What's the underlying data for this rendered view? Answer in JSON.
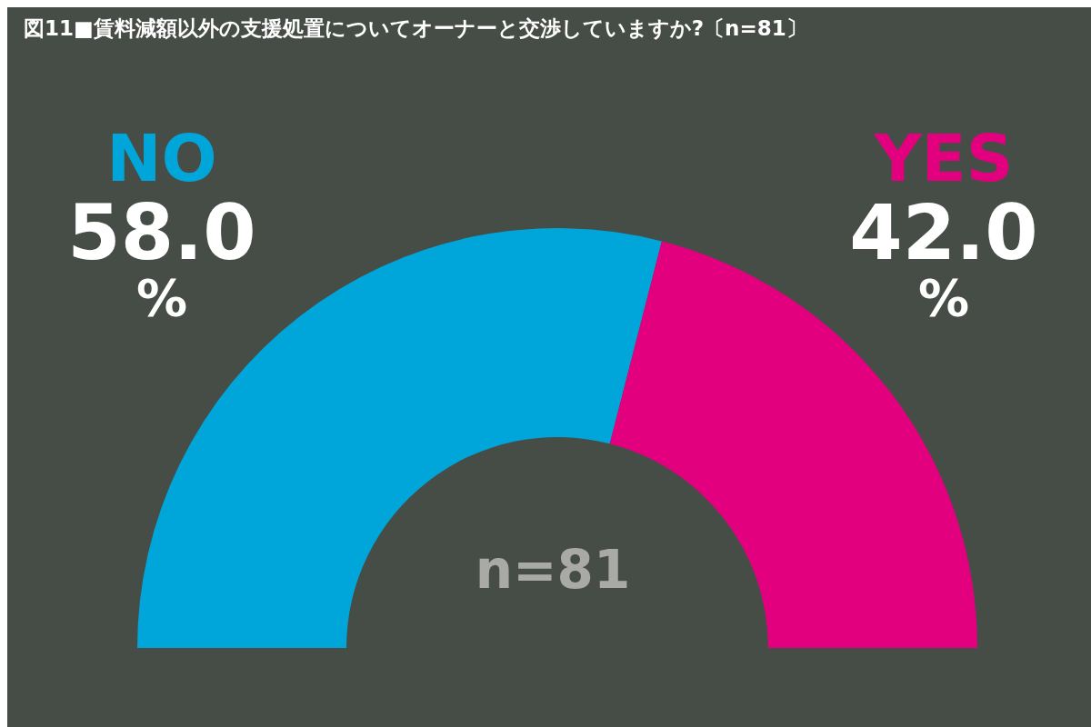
{
  "chart_data": {
    "type": "donut",
    "title": "図11■賃料減額以外の支援処置についてオーナーと交渉していますか?〔n=81〕",
    "categories": [
      "NO",
      "YES"
    ],
    "values": [
      58.0,
      42.0
    ],
    "colors": [
      "#00a6d9",
      "#e3007f"
    ],
    "value_labels": [
      "58.0%",
      "42.0%"
    ],
    "annotations": [
      "n=81"
    ]
  }
}
